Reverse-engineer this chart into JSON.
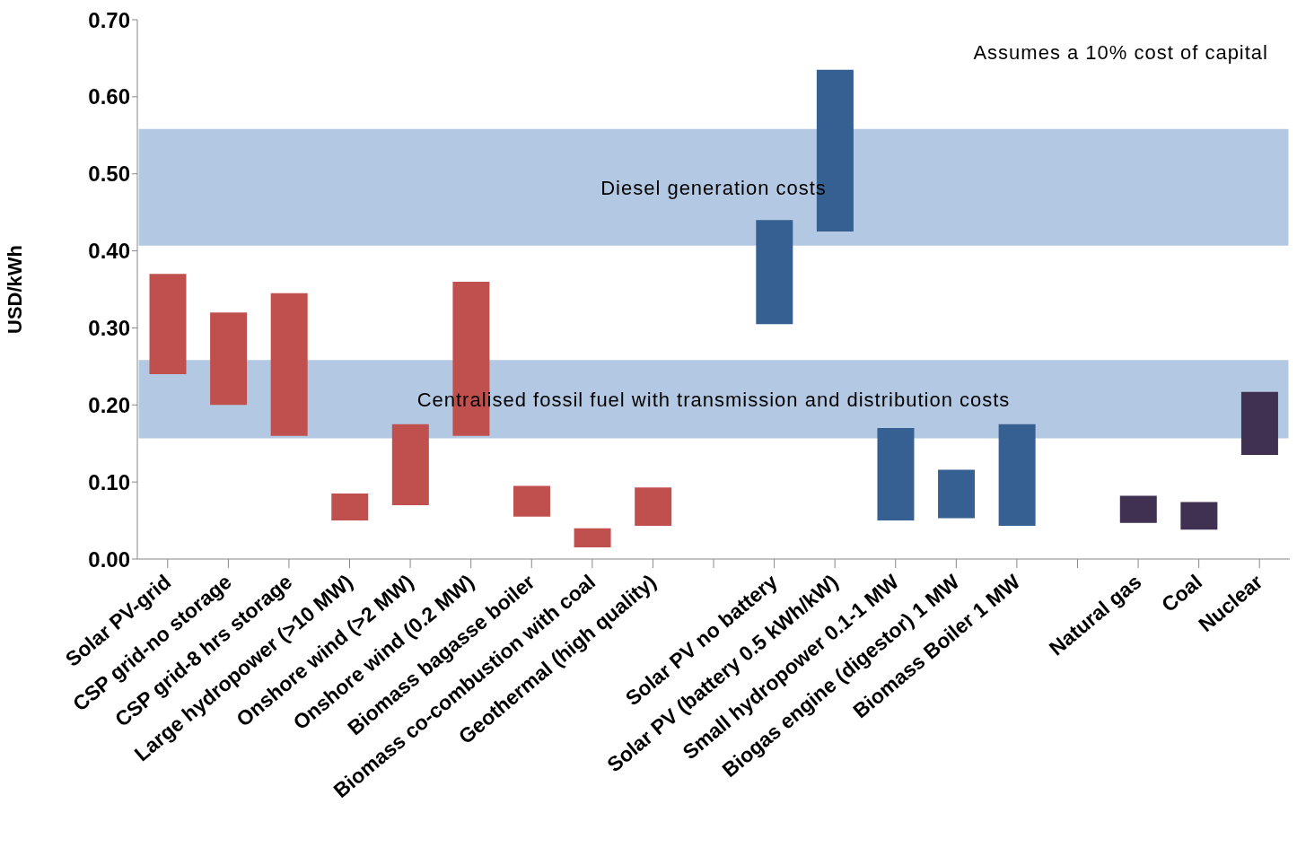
{
  "chart_data": {
    "type": "bar",
    "ylabel": "USD/kWh",
    "categories": [
      "Solar PV-grid",
      "CSP grid-no storage",
      "CSP grid-8 hrs storage",
      "Large hydropower (>10 MW)",
      "Onshore wind (>2 MW)",
      "Onshore wind (0.2 MW)",
      "Biomass bagasse boiler",
      "Biomass co-combustion with coal",
      "Geothermal (high quality)",
      null,
      "Solar PV no battery",
      "Solar PV (battery 0.5 kWh/kW)",
      "Small hydropower 0.1-1 MW",
      "Biogas engine (digestor) 1 MW",
      "Biomass Boiler 1 MW",
      null,
      "Natural gas",
      "Coal",
      "Nuclear"
    ],
    "base": [
      0.24,
      0.2,
      0.16,
      0.05,
      0.07,
      0.16,
      0.055,
      0.015,
      0.043,
      null,
      0.305,
      0.425,
      0.05,
      0.053,
      0.043,
      null,
      0.047,
      0.038,
      0.135
    ],
    "values": [
      0.13,
      0.12,
      0.185,
      0.035,
      0.105,
      0.2,
      0.04,
      0.025,
      0.05,
      null,
      0.135,
      0.21,
      0.12,
      0.063,
      0.132,
      null,
      0.035,
      0.036,
      0.082
    ],
    "colors": [
      "#c0504d",
      "#c0504d",
      "#c0504d",
      "#c0504d",
      "#c0504d",
      "#c0504d",
      "#c0504d",
      "#c0504d",
      "#c0504d",
      "#c0504d",
      "#376092",
      "#376092",
      "#376092",
      "#376092",
      "#376092",
      "#376092",
      "#403152",
      "#403152",
      "#403152"
    ],
    "ylim": [
      0,
      0.7
    ],
    "yticks": [
      {
        "value": 0,
        "label": "0.00"
      },
      {
        "value": 0.1,
        "label": "0.10"
      },
      {
        "value": 0.2,
        "label": "0.20"
      },
      {
        "value": 0.3,
        "label": "0.30"
      },
      {
        "value": 0.4,
        "label": "0.40"
      },
      {
        "value": 0.5,
        "label": "0.50"
      },
      {
        "value": 0.6,
        "label": "0.60"
      },
      {
        "value": 0.7,
        "label": "0.70"
      }
    ],
    "bands": [
      {
        "axis": "y",
        "from": 0.405,
        "to": 0.56,
        "label": "Diesel generation costs",
        "color": "#95b3d7"
      },
      {
        "axis": "y",
        "from": 0.155,
        "to": 0.26,
        "label": "Centralised fossil fuel with transmission and distribution costs",
        "color": "#95b3d7"
      }
    ],
    "annotations": [
      "Assumes a 10% cost of capital"
    ]
  }
}
